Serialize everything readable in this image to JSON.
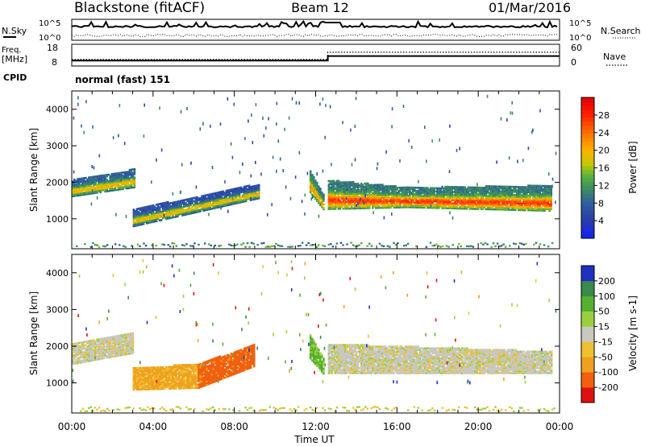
{
  "header": {
    "station": "Blackstone (fitACF)",
    "beam": "Beam 12",
    "date": "01/Mar/2016"
  },
  "noise_panel": {
    "left_label": "N.Sky",
    "right_label": "N.Search",
    "tick_top": "10^5",
    "tick_bottom": "10^0"
  },
  "freq_panel": {
    "left_label_line1": "Freq.",
    "left_label_line2": "[MHz]",
    "left_ticks": [
      "18",
      "8"
    ],
    "right_label": "Nave",
    "right_ticks": [
      "60",
      "0"
    ]
  },
  "cpid_panel": {
    "label": "CPID",
    "value": "normal (fast) 151"
  },
  "colorbars": {
    "power": {
      "label": "Power [dB]",
      "ticks": [
        "28",
        "24",
        "20",
        "16",
        "12",
        "8",
        "4"
      ]
    },
    "velocity": {
      "label": "Velocity [m s-1]",
      "ticks": [
        "200",
        "100",
        "50",
        "15",
        "-15",
        "-50",
        "-100",
        "-200"
      ]
    }
  },
  "chart_data": {
    "type": "heatmap",
    "x_axis": {
      "label": "Time UT",
      "ticks": [
        "00:00",
        "04:00",
        "08:00",
        "12:00",
        "16:00",
        "20:00",
        "00:00"
      ],
      "range_hours": [
        0,
        24
      ]
    },
    "y_axis": {
      "label": "Slant Range [km]",
      "ticks": [
        "1000",
        "2000",
        "3000",
        "4000"
      ],
      "range_km": [
        180,
        4500
      ]
    },
    "frequency_MHz": [
      {
        "t": 0,
        "v": 10.5
      },
      {
        "t": 12.6,
        "v": 10.5
      },
      {
        "t": 12.6,
        "v": 12.6
      },
      {
        "t": 24,
        "v": 12.6
      }
    ],
    "nave": [
      {
        "t": 0,
        "v": 18
      },
      {
        "t": 12.6,
        "v": 18
      },
      {
        "t": 12.6,
        "v": 38
      },
      {
        "t": 24,
        "v": 38
      }
    ],
    "power_bands": [
      {
        "t0": 0,
        "t1": 3.1,
        "lo0": 1600,
        "lo1": 1850,
        "hi0": 2050,
        "hi1": 2350,
        "peak": 20,
        "edge": 8
      },
      {
        "t0": 3.0,
        "t1": 9.2,
        "lo0": 780,
        "lo1": 1550,
        "hi0": 1250,
        "hi1": 1950,
        "peak": 20,
        "edge": 6
      },
      {
        "t0": 11.7,
        "t1": 12.4,
        "lo0": 1700,
        "lo1": 1200,
        "hi0": 2300,
        "hi1": 1600,
        "peak": 22,
        "edge": 10
      },
      {
        "t0": 12.6,
        "t1": 16.5,
        "lo0": 1250,
        "lo1": 1300,
        "hi0": 2050,
        "hi1": 1850,
        "peak": 27,
        "edge": 10
      },
      {
        "t0": 16.5,
        "t1": 23.6,
        "lo0": 1300,
        "lo1": 1200,
        "hi0": 1850,
        "hi1": 1900,
        "peak": 27,
        "edge": 10
      }
    ],
    "velocity_bands": [
      {
        "t0": 0,
        "t1": 3.0,
        "lo0": 1500,
        "lo1": 1800,
        "hi0": 2050,
        "hi1": 2350,
        "vel": 0
      },
      {
        "t0": 3.0,
        "t1": 6.2,
        "lo0": 800,
        "lo1": 850,
        "hi0": 1400,
        "hi1": 1500,
        "vel": -40
      },
      {
        "t0": 6.2,
        "t1": 9.0,
        "lo0": 850,
        "lo1": 1450,
        "hi0": 1500,
        "hi1": 2050,
        "vel": -90
      },
      {
        "t0": 11.7,
        "t1": 12.4,
        "lo0": 1650,
        "lo1": 1200,
        "hi0": 2300,
        "hi1": 1600,
        "vel": 40
      },
      {
        "t0": 12.6,
        "t1": 23.6,
        "lo0": 1250,
        "lo1": 1250,
        "hi0": 2050,
        "hi1": 1850,
        "vel": 0
      }
    ]
  }
}
